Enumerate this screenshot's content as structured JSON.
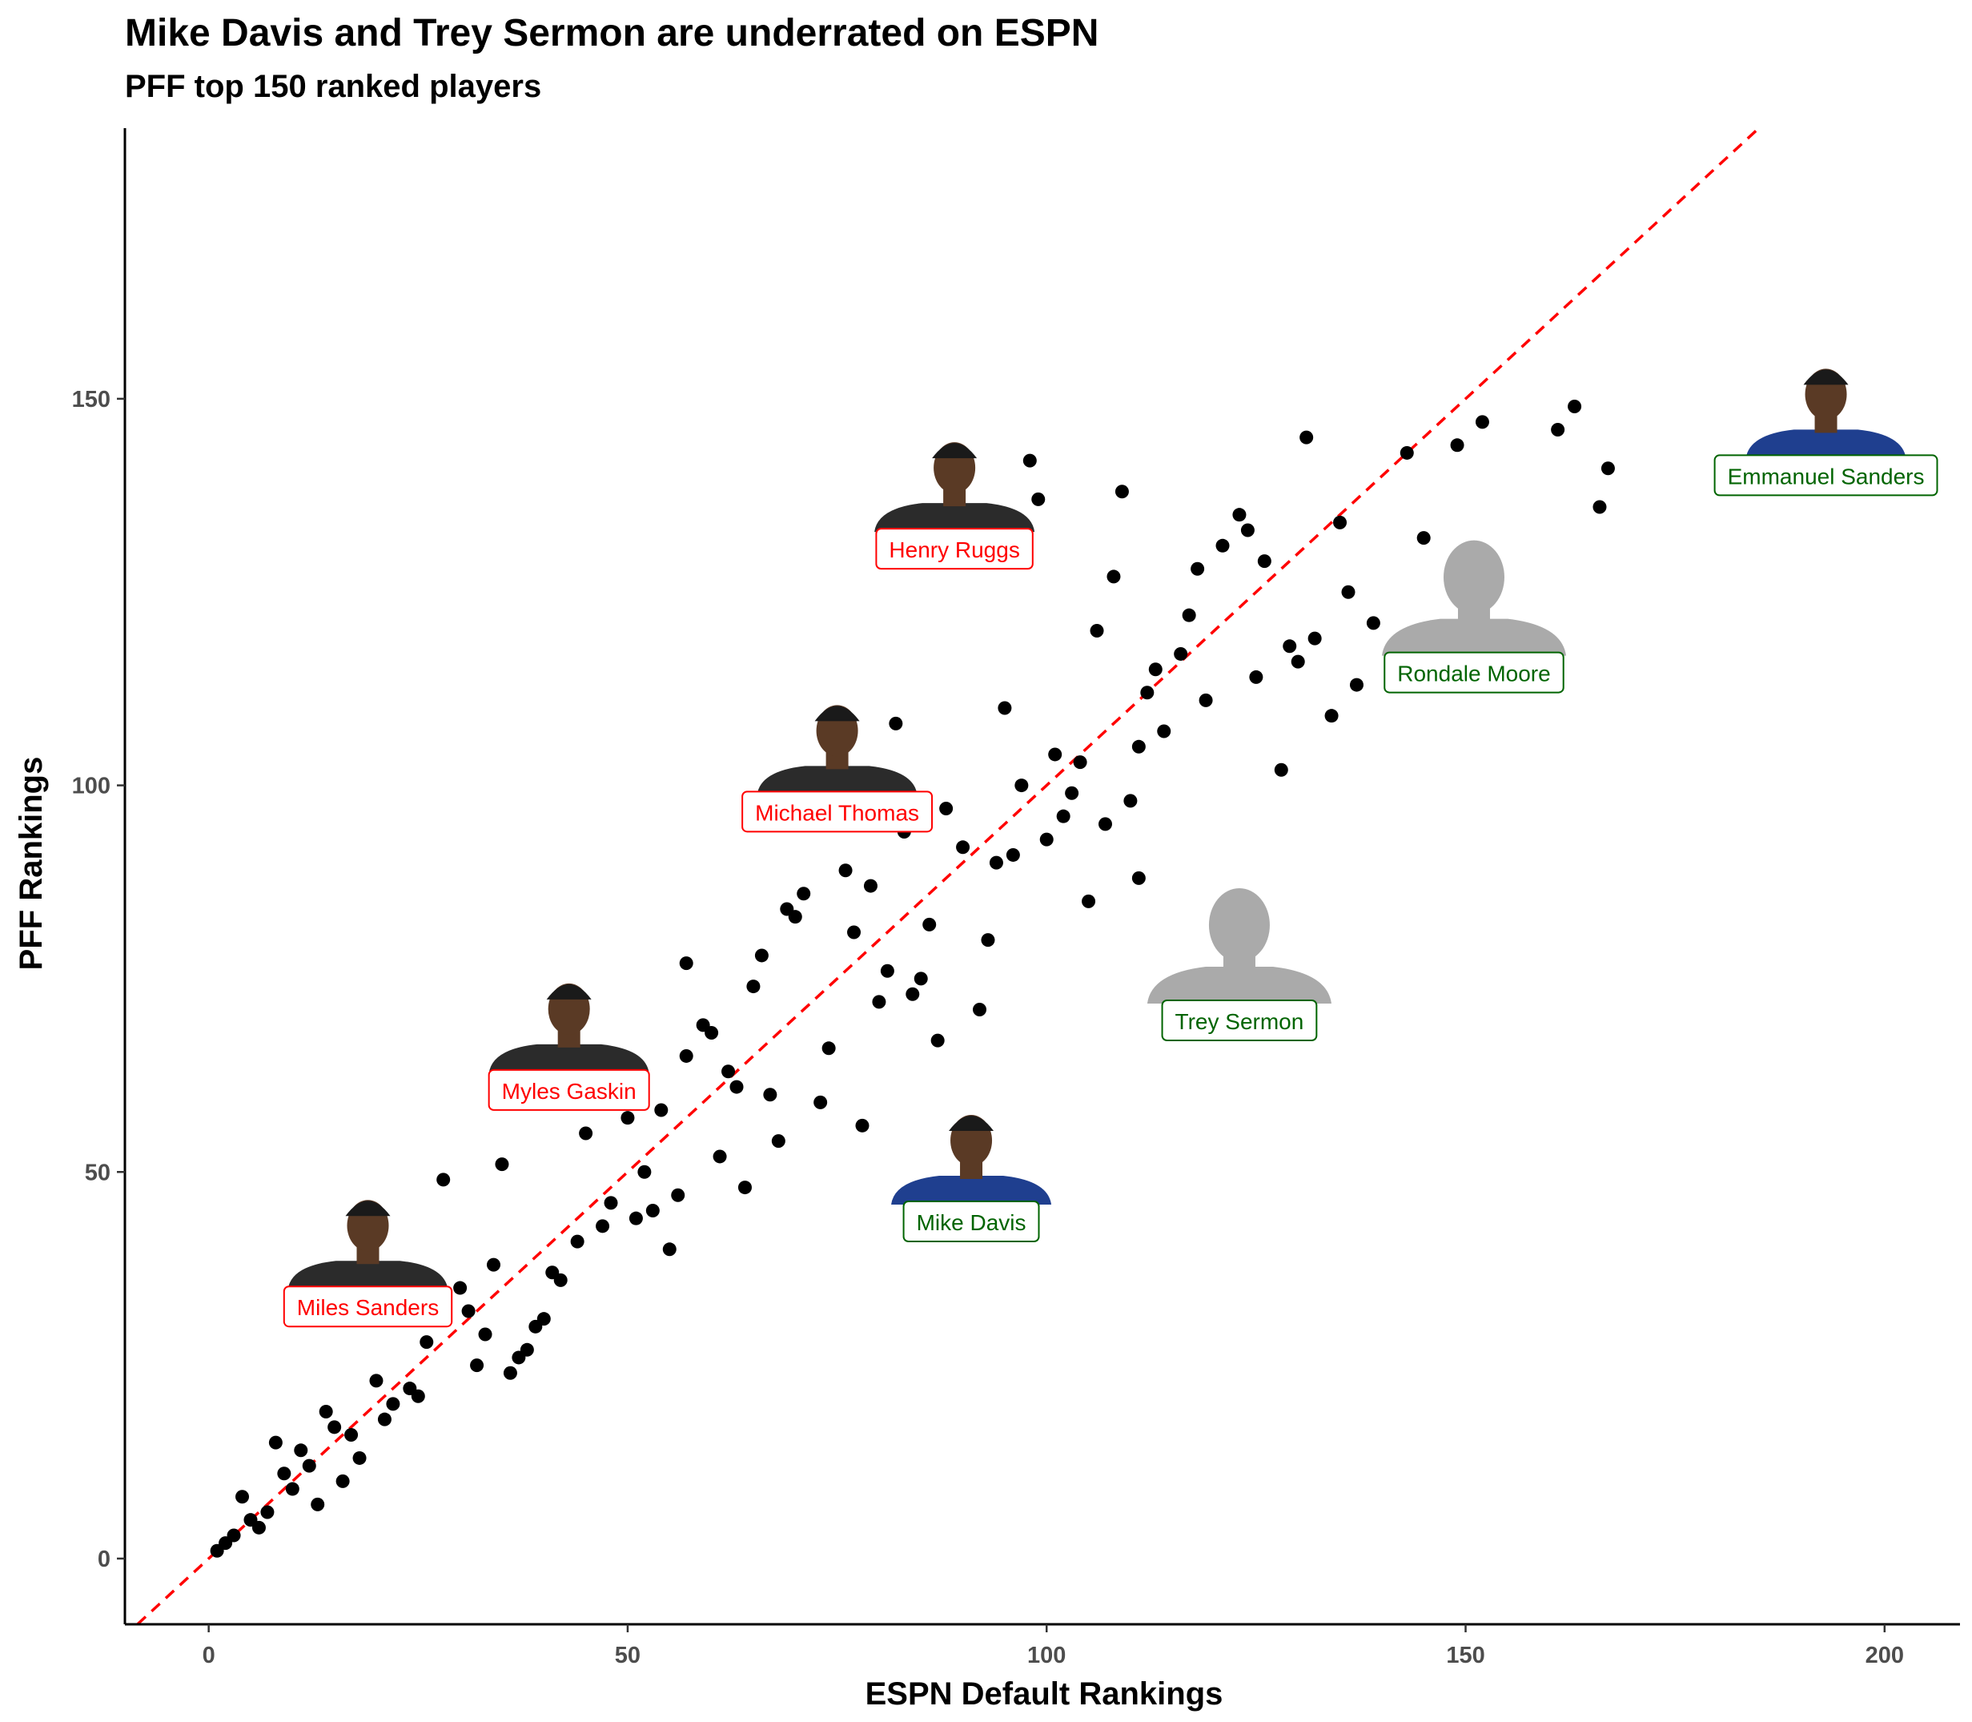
{
  "chart_data": {
    "type": "scatter",
    "title": "Mike Davis and Trey Sermon are underrated on ESPN",
    "subtitle": "PFF top 150 ranked players",
    "xlabel": "ESPN Default Rankings",
    "ylabel": "PFF Rankings",
    "xlim": [
      -10,
      209
    ],
    "ylim": [
      -8.5,
      185
    ],
    "xticks": [
      0,
      50,
      100,
      150,
      200
    ],
    "yticks": [
      0,
      50,
      100,
      150
    ],
    "grid": false,
    "reference_line": {
      "type": "y=x",
      "color": "#ff0000",
      "style": "dashed"
    },
    "colors": {
      "points": "#000000",
      "overrated": "#ff0000",
      "underrated": "#006400",
      "silhouette": "#aaaaaa"
    },
    "points": [
      [
        1,
        1
      ],
      [
        2,
        2
      ],
      [
        3,
        3
      ],
      [
        4,
        8
      ],
      [
        5,
        5
      ],
      [
        6,
        4
      ],
      [
        7,
        6
      ],
      [
        8,
        15
      ],
      [
        9,
        11
      ],
      [
        10,
        9
      ],
      [
        11,
        14
      ],
      [
        12,
        12
      ],
      [
        13,
        7
      ],
      [
        14,
        19
      ],
      [
        15,
        17
      ],
      [
        16,
        10
      ],
      [
        17,
        16
      ],
      [
        18,
        13
      ],
      [
        20,
        23
      ],
      [
        21,
        18
      ],
      [
        22,
        20
      ],
      [
        24,
        22
      ],
      [
        25,
        21
      ],
      [
        26,
        28
      ],
      [
        28,
        49
      ],
      [
        30,
        35
      ],
      [
        31,
        32
      ],
      [
        32,
        25
      ],
      [
        33,
        29
      ],
      [
        34,
        38
      ],
      [
        35,
        51
      ],
      [
        36,
        24
      ],
      [
        37,
        26
      ],
      [
        38,
        27
      ],
      [
        39,
        30
      ],
      [
        40,
        31
      ],
      [
        41,
        37
      ],
      [
        42,
        36
      ],
      [
        44,
        41
      ],
      [
        45,
        55
      ],
      [
        47,
        43
      ],
      [
        48,
        46
      ],
      [
        50,
        57
      ],
      [
        51,
        44
      ],
      [
        52,
        50
      ],
      [
        53,
        45
      ],
      [
        54,
        58
      ],
      [
        55,
        40
      ],
      [
        56,
        47
      ],
      [
        57,
        65
      ],
      [
        57,
        77
      ],
      [
        59,
        69
      ],
      [
        60,
        68
      ],
      [
        61,
        52
      ],
      [
        62,
        63
      ],
      [
        63,
        61
      ],
      [
        64,
        48
      ],
      [
        65,
        74
      ],
      [
        66,
        78
      ],
      [
        67,
        60
      ],
      [
        68,
        54
      ],
      [
        69,
        84
      ],
      [
        70,
        83
      ],
      [
        71,
        86
      ],
      [
        73,
        59
      ],
      [
        74,
        66
      ],
      [
        76,
        89
      ],
      [
        77,
        81
      ],
      [
        78,
        56
      ],
      [
        79,
        87
      ],
      [
        80,
        72
      ],
      [
        81,
        76
      ],
      [
        82,
        108
      ],
      [
        83,
        94
      ],
      [
        84,
        73
      ],
      [
        85,
        75
      ],
      [
        86,
        82
      ],
      [
        87,
        67
      ],
      [
        88,
        97
      ],
      [
        90,
        92
      ],
      [
        92,
        71
      ],
      [
        93,
        80
      ],
      [
        94,
        90
      ],
      [
        95,
        110
      ],
      [
        96,
        91
      ],
      [
        97,
        100
      ],
      [
        98,
        142
      ],
      [
        99,
        137
      ],
      [
        100,
        93
      ],
      [
        101,
        104
      ],
      [
        102,
        96
      ],
      [
        103,
        99
      ],
      [
        104,
        103
      ],
      [
        105,
        85
      ],
      [
        106,
        120
      ],
      [
        107,
        95
      ],
      [
        108,
        127
      ],
      [
        109,
        138
      ],
      [
        110,
        98
      ],
      [
        111,
        88
      ],
      [
        111,
        105
      ],
      [
        112,
        112
      ],
      [
        113,
        115
      ],
      [
        114,
        107
      ],
      [
        116,
        117
      ],
      [
        117,
        122
      ],
      [
        118,
        128
      ],
      [
        119,
        111
      ],
      [
        121,
        131
      ],
      [
        123,
        135
      ],
      [
        124,
        133
      ],
      [
        125,
        114
      ],
      [
        126,
        129
      ],
      [
        128,
        102
      ],
      [
        129,
        118
      ],
      [
        130,
        116
      ],
      [
        131,
        145
      ],
      [
        132,
        119
      ],
      [
        134,
        109
      ],
      [
        135,
        134
      ],
      [
        136,
        125
      ],
      [
        137,
        113
      ],
      [
        139,
        121
      ],
      [
        143,
        143
      ],
      [
        145,
        132
      ],
      [
        149,
        144
      ],
      [
        152,
        147
      ],
      [
        161,
        146
      ],
      [
        163,
        149
      ],
      [
        166,
        136
      ],
      [
        167,
        141
      ]
    ],
    "labeled_players": [
      {
        "name": "Henry Ruggs",
        "x": 89,
        "y": 130.5,
        "group": "overrated",
        "photo": "player-photo"
      },
      {
        "name": "Michael Thomas",
        "x": 75,
        "y": 96.5,
        "group": "overrated",
        "photo": "player-photo"
      },
      {
        "name": "Myles Gaskin",
        "x": 43,
        "y": 60.5,
        "group": "overrated",
        "photo": "player-photo"
      },
      {
        "name": "Miles Sanders",
        "x": 19,
        "y": 32.5,
        "group": "overrated",
        "photo": "player-photo"
      },
      {
        "name": "Emmanuel Sanders",
        "x": 193,
        "y": 140,
        "group": "underrated",
        "photo": "player-photo"
      },
      {
        "name": "Rondale Moore",
        "x": 151,
        "y": 114.5,
        "group": "underrated",
        "photo": "silhouette"
      },
      {
        "name": "Trey Sermon",
        "x": 123,
        "y": 69.5,
        "group": "underrated",
        "photo": "silhouette"
      },
      {
        "name": "Mike Davis",
        "x": 91,
        "y": 43.5,
        "group": "underrated",
        "photo": "player-photo"
      }
    ]
  }
}
